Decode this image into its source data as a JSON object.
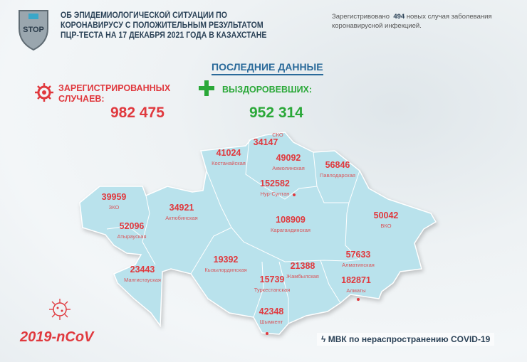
{
  "header": {
    "logo_text": "STOP",
    "title_lines": [
      "ОБ ЭПИДЕМИОЛОГИЧЕСКОЙ СИТУАЦИИ ПО",
      "КОРОНАВИРУСУ С ПОЛОЖИТЕЛЬНЫМ РЕЗУЛЬТАТОМ",
      "ПЦР-ТЕСТА НА 17 ДЕКАБРЯ 2021 ГОДА В КАЗАХСТАНЕ"
    ],
    "note_prefix": "Зарегистривовано",
    "note_count": "494",
    "note_suffix": "новых случая заболевания коронавирусной инфекцией."
  },
  "latest_title": "ПОСЛЕДНИЕ ДАННЫЕ",
  "registered": {
    "label_line1": "ЗАРЕГИСТРИРОВАННЫХ",
    "label_line2": "СЛУЧАЕВ:",
    "value": "982 475"
  },
  "recovered": {
    "label": "ВЫЗДОРОВЕВШИХ:",
    "value": "952 314"
  },
  "map_color": "#b9e2ec",
  "regions": [
    {
      "name": "СКО",
      "value": ""
    },
    {
      "name": "",
      "value": "34147"
    },
    {
      "name": "Костанайская",
      "value": "41024"
    },
    {
      "name": "Акмолинская",
      "value": "49092"
    },
    {
      "name": "Павлодарская",
      "value": "56846"
    },
    {
      "name": "Нур-Султан",
      "value": "152582"
    },
    {
      "name": "ЗКО",
      "value": "39959"
    },
    {
      "name": "Актюбинская",
      "value": "34921"
    },
    {
      "name": "Атырауская",
      "value": "52096"
    },
    {
      "name": "Карагандинская",
      "value": "108909"
    },
    {
      "name": "ВКО",
      "value": "50042"
    },
    {
      "name": "Мангистауская",
      "value": "23443"
    },
    {
      "name": "Кызылординская",
      "value": "19392"
    },
    {
      "name": "Жамбылская",
      "value": "21388"
    },
    {
      "name": "Туркестанская",
      "value": "15739"
    },
    {
      "name": "Алматинская",
      "value": "57633"
    },
    {
      "name": "Алматы",
      "value": "182871"
    },
    {
      "name": "Шымкент",
      "value": "42348"
    }
  ],
  "footer": {
    "ncov": "2019-nCoV",
    "mvk": "МВК по нераспространению COVID-19"
  }
}
